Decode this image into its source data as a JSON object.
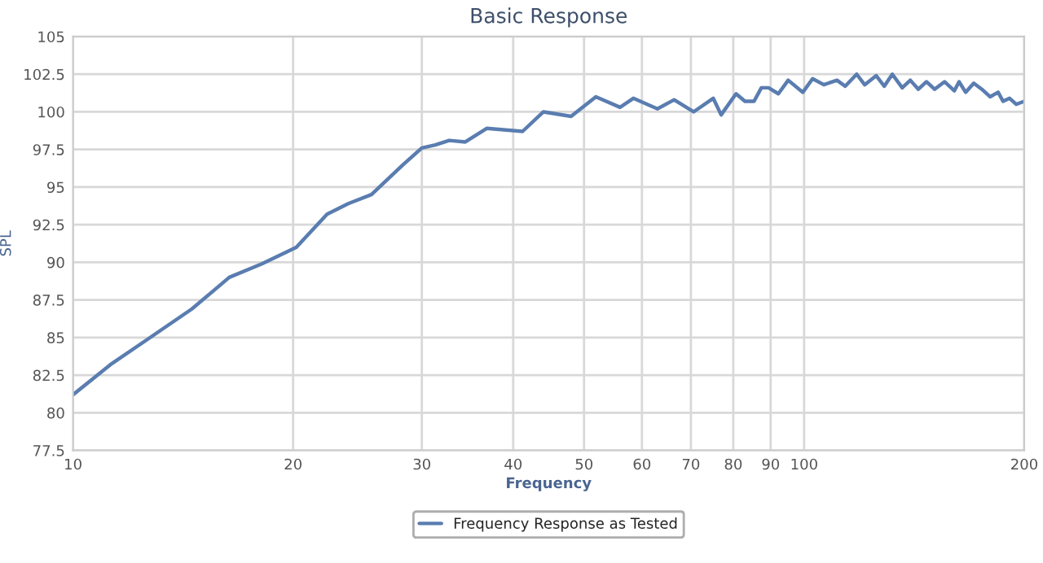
{
  "chart_data": {
    "type": "line",
    "title": "Basic Response",
    "xlabel": "Frequency",
    "ylabel": "SPL",
    "log": "x",
    "grid": true,
    "legend": "bottom",
    "marker": "none",
    "line_style": "solid",
    "xlim": [
      10,
      200
    ],
    "xticks": [
      10,
      20,
      30,
      40,
      50,
      60,
      70,
      80,
      90,
      100,
      200
    ],
    "ylim": [
      77.5,
      105
    ],
    "yticks": [
      77.5,
      80,
      82.5,
      85,
      87.5,
      90,
      92.5,
      95,
      97.5,
      100,
      102.5,
      105
    ],
    "x": [
      10,
      11.25,
      12.66,
      14.54,
      16.36,
      18.13,
      20.2,
      22.26,
      23.8,
      25.6,
      28.3,
      30,
      31.3,
      32.7,
      34.4,
      36.8,
      41.2,
      44,
      48,
      51.9,
      56,
      58.4,
      63,
      66.4,
      70.6,
      75.1,
      77,
      80.7,
      83,
      85.4,
      87.4,
      89.4,
      92.2,
      95.1,
      99.6,
      102.7,
      106.4,
      110.9,
      113.8,
      118,
      121,
      125.5,
      128.7,
      132,
      136.2,
      139.7,
      143.3,
      147,
      150.8,
      155.6,
      160.5,
      162.9,
      166.3,
      170.6,
      175,
      179.6,
      184.2,
      187.1,
      191,
      195,
      200
    ],
    "series": [
      {
        "name": "Frequency Response as Tested",
        "color": "#5a7db0",
        "values": [
          81.2,
          83.2,
          84.9,
          86.9,
          89.0,
          89.9,
          91.0,
          93.2,
          93.9,
          94.5,
          96.5,
          97.6,
          97.8,
          98.1,
          98.0,
          98.9,
          98.7,
          100.0,
          99.7,
          101.0,
          100.3,
          100.9,
          100.2,
          100.8,
          100.0,
          100.9,
          99.8,
          101.2,
          100.7,
          100.7,
          101.6,
          101.6,
          101.2,
          102.1,
          101.3,
          102.2,
          101.8,
          102.1,
          101.7,
          102.5,
          101.8,
          102.4,
          101.7,
          102.5,
          101.6,
          102.1,
          101.5,
          102.0,
          101.5,
          102.0,
          101.4,
          102.0,
          101.3,
          101.9,
          101.5,
          101.0,
          101.3,
          100.7,
          100.9,
          100.5,
          100.7
        ]
      }
    ]
  }
}
